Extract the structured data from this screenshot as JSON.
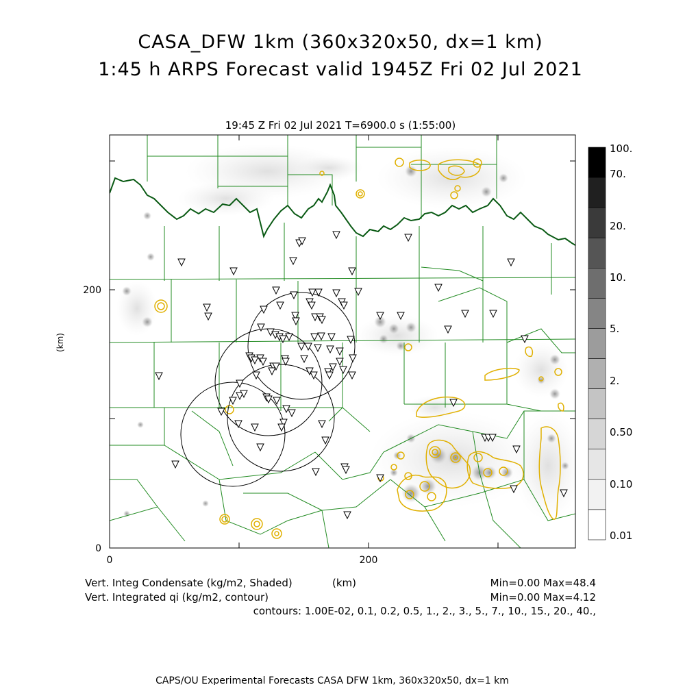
{
  "title_line1": "CASA_DFW 1km (360x320x50, dx=1 km)",
  "title_line2": "1:45 h ARPS Forecast valid 1945Z Fri 02 Jul 2021",
  "plot_header": "19:45 Z Fri 02 Jul 2021    T=6900.0 s (1:55:00)",
  "axes": {
    "x_ticks": [
      "0",
      "200"
    ],
    "y_ticks": [
      "0",
      "200"
    ],
    "y_label": "(km)",
    "x_label": "(km)"
  },
  "colorbar": {
    "labels": [
      "100.",
      "70.",
      "20.",
      "10.",
      "5.",
      "2.",
      "0.50",
      "0.10",
      "0.01"
    ],
    "colors": {
      "bands": [
        "#000000",
        "#202020",
        "#3a3a3a",
        "#555555",
        "#6e6e6e",
        "#858585",
        "#9c9c9c",
        "#b0b0b0",
        "#c4c4c4",
        "#d6d6d6",
        "#e6e6e6",
        "#f2f2f2",
        "#ffffff"
      ]
    }
  },
  "legend": {
    "shaded_label": "Vert. Integ Condensate (kg/m2, Shaded)",
    "contour_label": "Vert. Integrated qi (kg/m2, contour)",
    "contours_line": "contours: 1.00E-02, 0.1, 0.2, 0.5, 1., 2., 3., 5., 7., 10., 15., 20., 40.,",
    "shaded_minmax": "Min=0.00 Max=48.4",
    "contour_minmax": "Min=0.00 Max=4.12"
  },
  "footer": "CAPS/OU Experimental Forecasts  CASA DFW 1km, 360x320x50, dx=1 km",
  "colors": {
    "county_lines": "#228b22",
    "state_border": "#0a5a14",
    "ice_contour": "#e0b000",
    "radar_rings": "#000000"
  }
}
